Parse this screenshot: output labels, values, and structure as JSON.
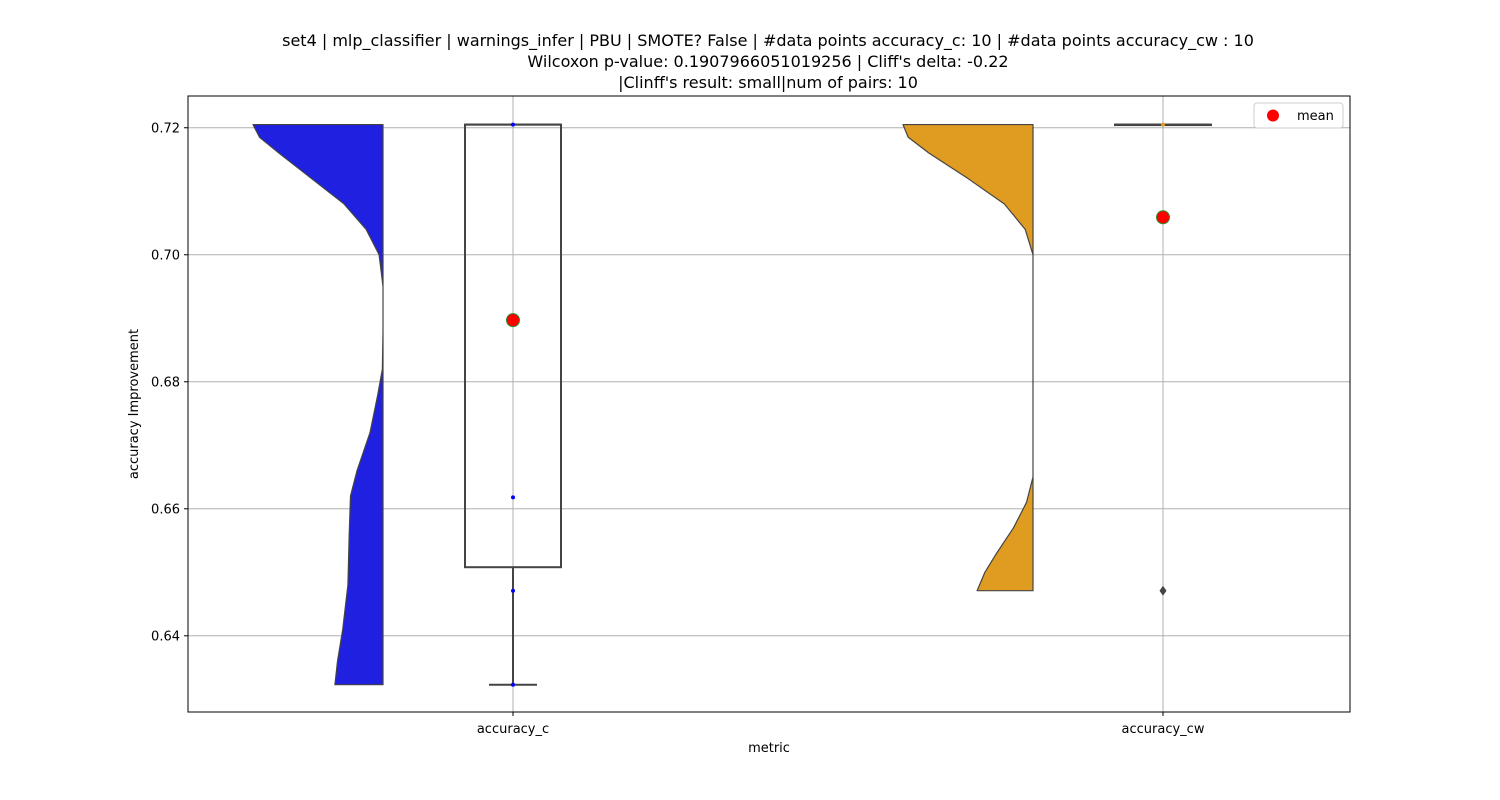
{
  "chart_data": {
    "type": "violin-box",
    "title_lines": [
      "set4 | mlp_classifier | warnings_infer | PBU | SMOTE? False | #data points accuracy_c: 10 | #data points accuracy_cw : 10",
      "Wilcoxon p-value: 0.1907966051019256 | Cliff's delta: -0.22",
      "|Clinff's result: small|num of pairs: 10"
    ],
    "xlabel": "metric",
    "ylabel": "accuracy Improvement",
    "categories": [
      "accuracy_c",
      "accuracy_cw"
    ],
    "ylim": [
      0.628,
      0.725
    ],
    "yticks": [
      0.64,
      0.66,
      0.68,
      0.7,
      0.72
    ],
    "ytick_labels": [
      "0.64",
      "0.66",
      "0.68",
      "0.70",
      "0.72"
    ],
    "grid": true,
    "legend": {
      "placement": "top-right",
      "entries": [
        {
          "label": "mean",
          "color": "#ff0000"
        }
      ]
    },
    "series": [
      {
        "category": "accuracy_c",
        "violin_color": "#2020e0",
        "violin_min": 0.6323,
        "violin_max": 0.7205,
        "box": {
          "whisker_low": 0.6323,
          "q1": 0.6508,
          "median": 0.7205,
          "q3": 0.7205,
          "whisker_high": 0.7205
        },
        "mean": 0.6897,
        "points": [
          0.7205,
          0.6618,
          0.6471,
          0.6323
        ],
        "point_color": "#0000ff"
      },
      {
        "category": "accuracy_cw",
        "violin_color": "#e09c20",
        "violin_min": 0.6471,
        "violin_max": 0.7205,
        "box": {
          "whisker_low": 0.7205,
          "q1": 0.7205,
          "median": 0.7205,
          "q3": 0.7205,
          "whisker_high": 0.7205
        },
        "mean": 0.7059,
        "outliers": [
          0.6471
        ],
        "points": [
          0.7205
        ],
        "point_color": "#e09c20"
      }
    ]
  }
}
